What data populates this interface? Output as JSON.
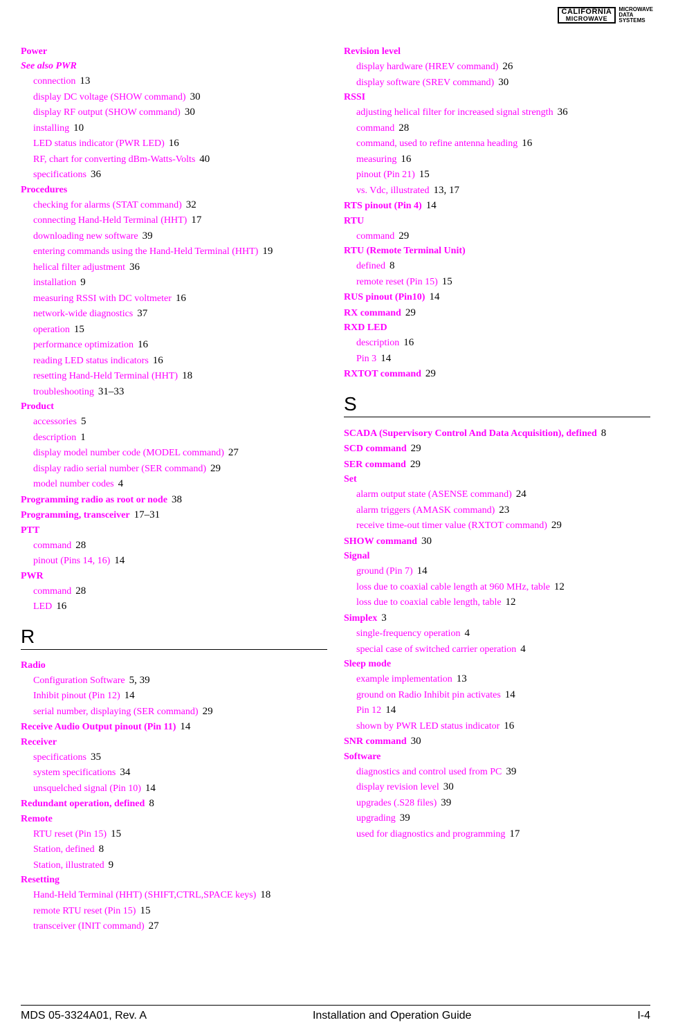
{
  "logo": {
    "line1": "CALIFORNIA",
    "line2": "MICROWAVE",
    "side1": "MICROWAVE",
    "side2": "DATA",
    "side3": "SYSTEMS"
  },
  "footer": {
    "left": "MDS 05-3324A01, Rev. A",
    "center": "Installation and Operation Guide",
    "right": "I-4"
  },
  "sections": {
    "R": "R",
    "S": "S"
  },
  "left": [
    {
      "t": "h",
      "label": "Power"
    },
    {
      "t": "h",
      "label": "See also PWR",
      "italic": true
    },
    {
      "t": "s",
      "label": "connection",
      "pg": "13"
    },
    {
      "t": "s",
      "label": "display DC voltage (SHOW command)",
      "pg": "30"
    },
    {
      "t": "s",
      "label": "display RF output (SHOW command)",
      "pg": "30"
    },
    {
      "t": "s",
      "label": "installing",
      "pg": "10"
    },
    {
      "t": "s",
      "label": "LED status indicator (PWR LED)",
      "pg": "16"
    },
    {
      "t": "s",
      "label": "RF, chart for converting dBm-Watts-Volts",
      "pg": "40"
    },
    {
      "t": "s",
      "label": "specifications",
      "pg": "36"
    },
    {
      "t": "h",
      "label": "Procedures"
    },
    {
      "t": "s",
      "label": "checking for alarms (STAT command)",
      "pg": "32"
    },
    {
      "t": "s",
      "label": "connecting Hand-Held Terminal (HHT)",
      "pg": "17"
    },
    {
      "t": "s",
      "label": "downloading new software",
      "pg": "39"
    },
    {
      "t": "s",
      "label": "entering commands using the Hand-Held Terminal (HHT)",
      "pg": "19"
    },
    {
      "t": "s",
      "label": "helical filter adjustment",
      "pg": "36"
    },
    {
      "t": "s",
      "label": "installation",
      "pg": "9"
    },
    {
      "t": "s",
      "label": "measuring RSSI with DC voltmeter",
      "pg": "16"
    },
    {
      "t": "s",
      "label": "network-wide diagnostics",
      "pg": "37"
    },
    {
      "t": "s",
      "label": "operation",
      "pg": "15"
    },
    {
      "t": "s",
      "label": "performance optimization",
      "pg": "16"
    },
    {
      "t": "s",
      "label": "reading LED status indicators",
      "pg": "16"
    },
    {
      "t": "s",
      "label": "resetting Hand-Held Terminal (HHT)",
      "pg": "18"
    },
    {
      "t": "s",
      "label": "troubleshooting",
      "pg": "31–33"
    },
    {
      "t": "h",
      "label": "Product"
    },
    {
      "t": "s",
      "label": "accessories",
      "pg": "5"
    },
    {
      "t": "s",
      "label": "description",
      "pg": "1"
    },
    {
      "t": "s",
      "label": "display model number code (MODEL command)",
      "pg": "27"
    },
    {
      "t": "s",
      "label": "display radio serial number (SER command)",
      "pg": "29"
    },
    {
      "t": "s",
      "label": "model number codes",
      "pg": "4"
    },
    {
      "t": "h",
      "label": "Programming radio as root or node",
      "pg": "38"
    },
    {
      "t": "h",
      "label": "Programming, transceiver",
      "pg": "17–31"
    },
    {
      "t": "h",
      "label": "PTT"
    },
    {
      "t": "s",
      "label": "command",
      "pg": "28"
    },
    {
      "t": "s",
      "label": "pinout (Pins 14, 16)",
      "pg": "14"
    },
    {
      "t": "h",
      "label": "PWR"
    },
    {
      "t": "s",
      "label": "command",
      "pg": "28"
    },
    {
      "t": "s",
      "label": "LED",
      "pg": "16"
    },
    {
      "t": "letter",
      "label": "R"
    },
    {
      "t": "h",
      "label": "Radio"
    },
    {
      "t": "s",
      "label": "Configuration Software",
      "pg": "5, 39"
    },
    {
      "t": "s",
      "label": "Inhibit pinout (Pin 12)",
      "pg": "14"
    },
    {
      "t": "s",
      "label": "serial number, displaying (SER command)",
      "pg": "29"
    },
    {
      "t": "h",
      "label": "Receive Audio Output pinout (Pin 11)",
      "pg": "14"
    },
    {
      "t": "h",
      "label": "Receiver"
    },
    {
      "t": "s",
      "label": "specifications",
      "pg": "35"
    },
    {
      "t": "s",
      "label": "system specifications",
      "pg": "34"
    },
    {
      "t": "s",
      "label": "unsquelched signal (Pin 10)",
      "pg": "14"
    },
    {
      "t": "h",
      "label": "Redundant operation, defined",
      "pg": "8"
    },
    {
      "t": "h",
      "label": "Remote"
    },
    {
      "t": "s",
      "label": "RTU reset (Pin 15)",
      "pg": "15"
    },
    {
      "t": "s",
      "label": "Station, defined",
      "pg": "8"
    },
    {
      "t": "s",
      "label": "Station, illustrated",
      "pg": "9"
    },
    {
      "t": "h",
      "label": "Resetting"
    },
    {
      "t": "s",
      "label": "Hand-Held Terminal (HHT) (SHIFT,CTRL,SPACE keys)",
      "pg": "18"
    },
    {
      "t": "s",
      "label": "remote RTU reset (Pin 15)",
      "pg": "15"
    },
    {
      "t": "s",
      "label": "transceiver (INIT command)",
      "pg": "27"
    }
  ],
  "right": [
    {
      "t": "h",
      "label": "Revision level"
    },
    {
      "t": "s",
      "label": "display hardware (HREV command)",
      "pg": "26"
    },
    {
      "t": "s",
      "label": "display software (SREV command)",
      "pg": "30"
    },
    {
      "t": "h",
      "label": "RSSI"
    },
    {
      "t": "s",
      "label": "adjusting helical filter for increased signal strength",
      "pg": "36"
    },
    {
      "t": "s",
      "label": "command",
      "pg": "28"
    },
    {
      "t": "s",
      "label": "command, used to refine antenna heading",
      "pg": "16"
    },
    {
      "t": "s",
      "label": "measuring",
      "pg": "16"
    },
    {
      "t": "s",
      "label": "pinout (Pin 21)",
      "pg": "15"
    },
    {
      "t": "s",
      "label": "vs. Vdc, illustrated",
      "pg": "13, 17"
    },
    {
      "t": "h",
      "label": "RTS pinout (Pin 4)",
      "pg": "14"
    },
    {
      "t": "h",
      "label": "RTU"
    },
    {
      "t": "s",
      "label": "command",
      "pg": "29"
    },
    {
      "t": "h",
      "label": "RTU (Remote Terminal Unit)"
    },
    {
      "t": "s",
      "label": "defined",
      "pg": "8"
    },
    {
      "t": "s",
      "label": "remote reset (Pin 15)",
      "pg": "15"
    },
    {
      "t": "h",
      "label": "RUS pinout (Pin10)",
      "pg": "14"
    },
    {
      "t": "h",
      "label": "RX command",
      "pg": "29"
    },
    {
      "t": "h",
      "label": "RXD LED"
    },
    {
      "t": "s",
      "label": "description",
      "pg": "16"
    },
    {
      "t": "s",
      "label": "Pin 3",
      "pg": "14"
    },
    {
      "t": "h",
      "label": "RXTOT command",
      "pg": "29"
    },
    {
      "t": "letter",
      "label": "S"
    },
    {
      "t": "h",
      "label": "SCADA (Supervisory Control And Data Acquisition), defined",
      "pg": "8"
    },
    {
      "t": "h",
      "label": "SCD command",
      "pg": "29"
    },
    {
      "t": "h",
      "label": "SER command",
      "pg": "29"
    },
    {
      "t": "h",
      "label": "Set"
    },
    {
      "t": "s",
      "label": "alarm output state (ASENSE command)",
      "pg": "24"
    },
    {
      "t": "s",
      "label": "alarm triggers (AMASK command)",
      "pg": "23"
    },
    {
      "t": "s",
      "label": "receive time-out timer value (RXTOT command)",
      "pg": "29"
    },
    {
      "t": "h",
      "label": "SHOW command",
      "pg": "30"
    },
    {
      "t": "h",
      "label": "Signal"
    },
    {
      "t": "s",
      "label": "ground (Pin 7)",
      "pg": "14"
    },
    {
      "t": "s",
      "label": "loss due to coaxial cable length at 960 MHz, table",
      "pg": "12"
    },
    {
      "t": "s",
      "label": "loss due to coaxial cable length, table",
      "pg": "12"
    },
    {
      "t": "h",
      "label": "Simplex",
      "pg": "3"
    },
    {
      "t": "s",
      "label": "single-frequency operation",
      "pg": "4"
    },
    {
      "t": "s",
      "label": "special case of switched carrier operation",
      "pg": "4"
    },
    {
      "t": "h",
      "label": "Sleep mode"
    },
    {
      "t": "s",
      "label": "example implementation",
      "pg": "13"
    },
    {
      "t": "s",
      "label": "ground on Radio Inhibit pin activates",
      "pg": "14"
    },
    {
      "t": "s",
      "label": "Pin 12",
      "pg": "14"
    },
    {
      "t": "s",
      "label": "shown by PWR LED status indicator",
      "pg": "16"
    },
    {
      "t": "h",
      "label": "SNR command",
      "pg": "30"
    },
    {
      "t": "h",
      "label": "Software"
    },
    {
      "t": "s",
      "label": "diagnostics and control used from PC",
      "pg": "39"
    },
    {
      "t": "s",
      "label": "display revision level",
      "pg": "30"
    },
    {
      "t": "s",
      "label": "upgrades (.S28 files)",
      "pg": "39"
    },
    {
      "t": "s",
      "label": "upgrading",
      "pg": "39"
    },
    {
      "t": "s",
      "label": "used for diagnostics and programming",
      "pg": "17"
    }
  ]
}
